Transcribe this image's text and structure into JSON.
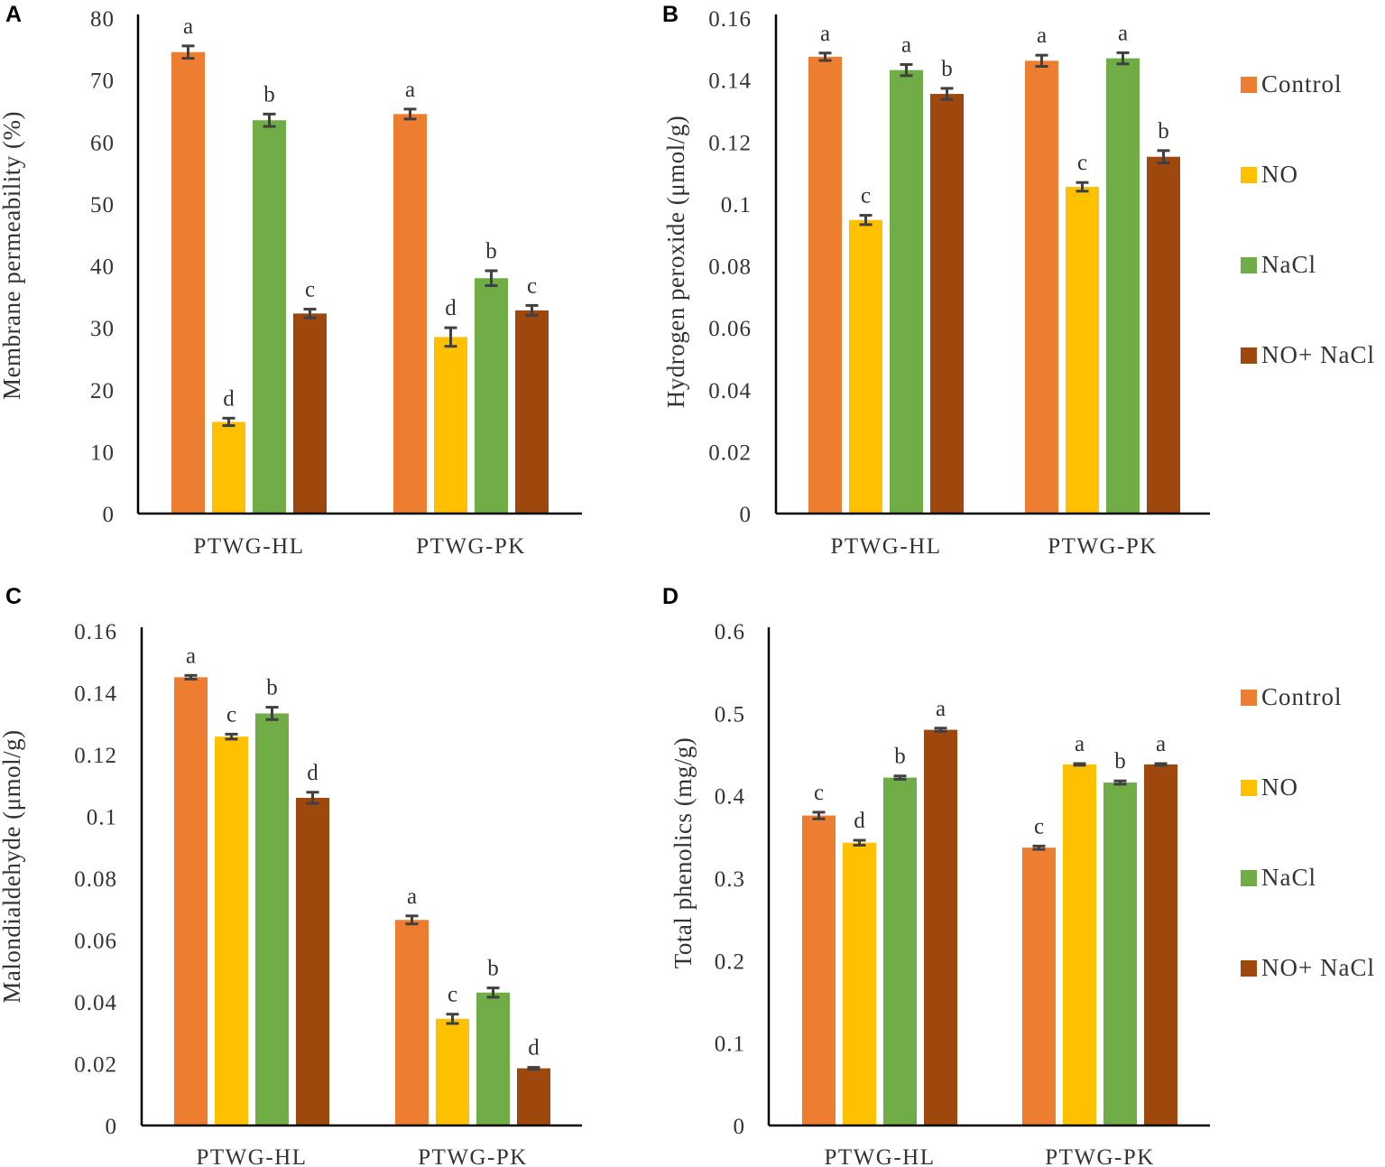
{
  "colors": {
    "Control": "#ED7D31",
    "NO": "#FFC000",
    "NaCl": "#70AD47",
    "NO+ NaCl": "#9E480E",
    "axis": "#000000",
    "error_bar": "#404040",
    "text": "#333333"
  },
  "legend": [
    "Control",
    "NO",
    "NaCl",
    "NO+ NaCl"
  ],
  "chart_data": [
    {
      "panel": "A",
      "type": "bar",
      "ylabel": "Membrane permeability (%)",
      "categories": [
        "PTWG-HL",
        "PTWG-PK"
      ],
      "ylim": [
        0,
        80
      ],
      "yticks": [
        "0",
        "10",
        "20",
        "30",
        "40",
        "50",
        "60",
        "70",
        "80"
      ],
      "series": [
        {
          "name": "Control",
          "values": [
            74.5,
            64.5
          ],
          "errors": [
            1.0,
            0.8
          ],
          "letters": [
            "a",
            "a"
          ]
        },
        {
          "name": "NO",
          "values": [
            14.8,
            28.5
          ],
          "errors": [
            0.6,
            1.5
          ],
          "letters": [
            "d",
            "d"
          ]
        },
        {
          "name": "NaCl",
          "values": [
            63.5,
            38.0
          ],
          "errors": [
            1.0,
            1.2
          ],
          "letters": [
            "b",
            "b"
          ]
        },
        {
          "name": "NO+ NaCl",
          "values": [
            32.3,
            32.8
          ],
          "errors": [
            0.7,
            0.8
          ],
          "letters": [
            "c",
            "c"
          ]
        }
      ]
    },
    {
      "panel": "B",
      "type": "bar",
      "ylabel": "Hydrogen peroxide (μmol/g)",
      "categories": [
        "PTWG-HL",
        "PTWG-PK"
      ],
      "ylim": [
        0,
        0.16
      ],
      "yticks": [
        "0",
        "0.02",
        "0.04",
        "0.06",
        "0.08",
        "0.1",
        "0.12",
        "0.14",
        "0.16"
      ],
      "series": [
        {
          "name": "Control",
          "values": [
            0.1475,
            0.1462
          ],
          "errors": [
            0.0012,
            0.0018
          ],
          "letters": [
            "a",
            "a"
          ]
        },
        {
          "name": "NO",
          "values": [
            0.0948,
            0.1055
          ],
          "errors": [
            0.0015,
            0.0014
          ],
          "letters": [
            "c",
            "c"
          ]
        },
        {
          "name": "NaCl",
          "values": [
            0.1432,
            0.147
          ],
          "errors": [
            0.0018,
            0.0018
          ],
          "letters": [
            "a",
            "a"
          ]
        },
        {
          "name": "NO+ NaCl",
          "values": [
            0.1355,
            0.1152
          ],
          "errors": [
            0.0018,
            0.002
          ],
          "letters": [
            "b",
            "b"
          ]
        }
      ]
    },
    {
      "panel": "C",
      "type": "bar",
      "ylabel": "Malondialdehyde (μmol/g)",
      "categories": [
        "PTWG-HL",
        "PTWG-PK"
      ],
      "ylim": [
        0,
        0.16
      ],
      "yticks": [
        "0",
        "0.02",
        "0.04",
        "0.06",
        "0.08",
        "0.1",
        "0.12",
        "0.14",
        "0.16"
      ],
      "series": [
        {
          "name": "Control",
          "values": [
            0.145,
            0.0665
          ],
          "errors": [
            0.0006,
            0.0013
          ],
          "letters": [
            "a",
            "a"
          ]
        },
        {
          "name": "NO",
          "values": [
            0.1258,
            0.0345
          ],
          "errors": [
            0.0008,
            0.0015
          ],
          "letters": [
            "c",
            "c"
          ]
        },
        {
          "name": "NaCl",
          "values": [
            0.1333,
            0.043
          ],
          "errors": [
            0.002,
            0.0015
          ],
          "letters": [
            "b",
            "b"
          ]
        },
        {
          "name": "NO+ NaCl",
          "values": [
            0.106,
            0.0185
          ],
          "errors": [
            0.0018,
            0.0003
          ],
          "letters": [
            "d",
            "d"
          ]
        }
      ]
    },
    {
      "panel": "D",
      "type": "bar",
      "ylabel": "Total phenolics (mg/g)",
      "categories": [
        "PTWG-HL",
        "PTWG-PK"
      ],
      "ylim": [
        0,
        0.6
      ],
      "yticks": [
        "0",
        "0.1",
        "0.2",
        "0.3",
        "0.4",
        "0.5",
        "0.6"
      ],
      "series": [
        {
          "name": "Control",
          "values": [
            0.376,
            0.337
          ],
          "errors": [
            0.004,
            0.002
          ],
          "letters": [
            "c",
            "c"
          ]
        },
        {
          "name": "NO",
          "values": [
            0.343,
            0.438
          ],
          "errors": [
            0.003,
            0.001
          ],
          "letters": [
            "d",
            "a"
          ]
        },
        {
          "name": "NaCl",
          "values": [
            0.422,
            0.416
          ],
          "errors": [
            0.002,
            0.002
          ],
          "letters": [
            "b",
            "b"
          ]
        },
        {
          "name": "NO+ NaCl",
          "values": [
            0.48,
            0.438
          ],
          "errors": [
            0.002,
            0.001
          ],
          "letters": [
            "a",
            "a"
          ]
        }
      ]
    }
  ]
}
